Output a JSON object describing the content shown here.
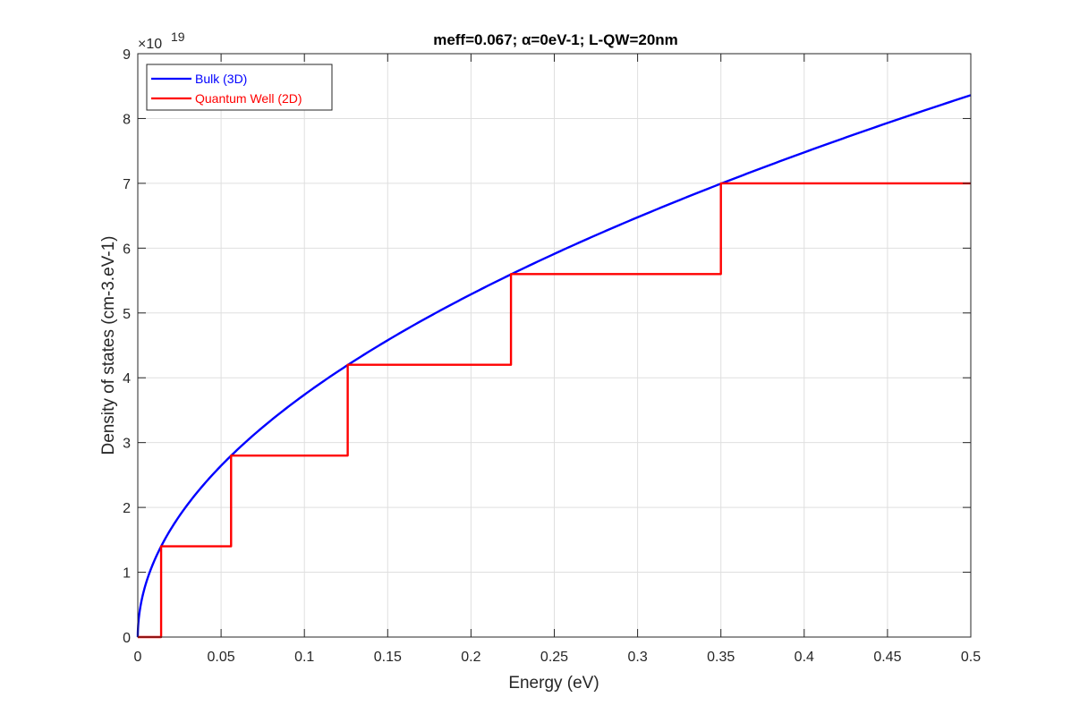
{
  "chart_data": {
    "type": "line",
    "title": "meff=0.067; α=0eV-1; L-QW=20nm",
    "xlabel": "Energy (eV)",
    "ylabel": "Density of states (cm-3.eV-1)",
    "xlim": [
      0,
      0.5
    ],
    "ylim": [
      0,
      9
    ],
    "y_multiplier": "×10",
    "y_exponent": "19",
    "xticks": [
      "0",
      "0.05",
      "0.1",
      "0.15",
      "0.2",
      "0.25",
      "0.3",
      "0.35",
      "0.4",
      "0.45",
      "0.5"
    ],
    "xtick_values": [
      0,
      0.05,
      0.1,
      0.15,
      0.2,
      0.25,
      0.3,
      0.35,
      0.4,
      0.45,
      0.5
    ],
    "yticks": [
      "0",
      "1",
      "2",
      "3",
      "4",
      "5",
      "6",
      "7",
      "8",
      "9"
    ],
    "ytick_values": [
      0,
      1,
      2,
      3,
      4,
      5,
      6,
      7,
      8,
      9
    ],
    "grid": true,
    "legend_position": "top-left",
    "series": [
      {
        "name": "Bulk (3D)",
        "color": "#0000ff",
        "form": "sqrt",
        "x": [
          0,
          0.001,
          0.003,
          0.005,
          0.01,
          0.014,
          0.02,
          0.03,
          0.04,
          0.056,
          0.07,
          0.09,
          0.11,
          0.126,
          0.15,
          0.175,
          0.2,
          0.224,
          0.25,
          0.275,
          0.3,
          0.325,
          0.35,
          0.375,
          0.4,
          0.425,
          0.45,
          0.475,
          0.5
        ],
        "y": [
          0,
          0.374,
          0.647,
          0.836,
          1.182,
          1.399,
          1.672,
          2.048,
          2.365,
          2.798,
          3.128,
          3.547,
          3.922,
          4.196,
          4.58,
          4.946,
          5.288,
          5.596,
          5.912,
          6.201,
          6.476,
          6.741,
          6.996,
          7.24,
          7.478,
          7.708,
          7.932,
          8.148,
          8.36
        ]
      },
      {
        "name": "Quantum Well (2D)",
        "color": "#ff0000",
        "form": "step",
        "x": [
          0,
          0.014,
          0.014,
          0.056,
          0.056,
          0.126,
          0.126,
          0.224,
          0.224,
          0.35,
          0.35,
          0.5
        ],
        "y": [
          0,
          0,
          1.4,
          1.4,
          2.8,
          2.8,
          4.2,
          4.2,
          5.6,
          5.6,
          7.0,
          7.0
        ]
      }
    ]
  }
}
